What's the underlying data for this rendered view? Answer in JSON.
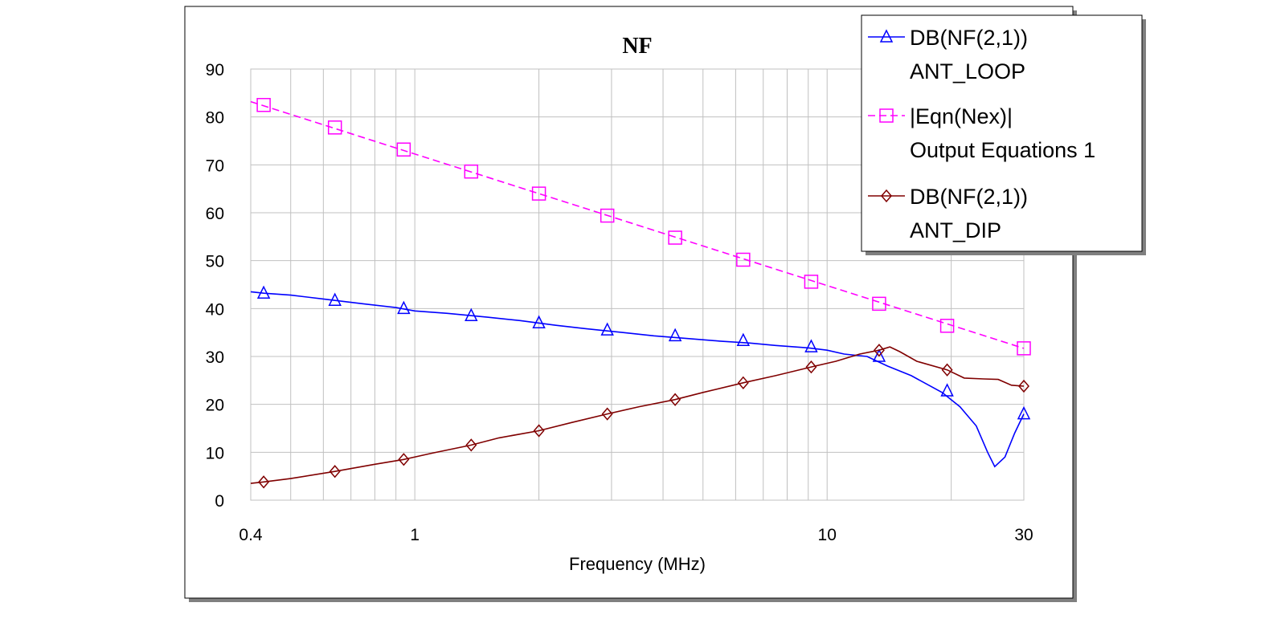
{
  "chart_data": {
    "type": "line",
    "title": "NF",
    "xlabel": "Frequency (MHz)",
    "ylabel": "",
    "x_scale": "log",
    "xlim": [
      0.4,
      30
    ],
    "ylim": [
      0,
      90
    ],
    "grid": true,
    "legend_position": "top-right",
    "x_tick_labels": [
      "0.4",
      "1",
      "10",
      "30"
    ],
    "x_ticks": [
      0.4,
      1,
      10,
      30
    ],
    "y_ticks": [
      0,
      10,
      20,
      30,
      40,
      50,
      60,
      70,
      80,
      90
    ],
    "y_tick_labels": [
      "0",
      "10",
      "20",
      "30",
      "40",
      "50",
      "60",
      "70",
      "80",
      "90"
    ],
    "series": [
      {
        "name": "DB(NF(2,1))",
        "name2": "ANT_LOOP",
        "color": "#0000ff",
        "dash": "solid",
        "marker": "triangle",
        "x": [
          0.4,
          0.43,
          0.5,
          0.6,
          0.75,
          0.9,
          1.0,
          1.2,
          1.5,
          1.8,
          2.2,
          2.6,
          3.2,
          3.8,
          4.5,
          5.5,
          6.5,
          7.5,
          9.0,
          10.0,
          11.0,
          12.5,
          14.0,
          16.0,
          19.0,
          21.0,
          23.0,
          24.5,
          25.5,
          27.0,
          28.5,
          30.0
        ],
        "y": [
          43.5,
          43.2,
          42.8,
          42.0,
          41.0,
          40.2,
          39.5,
          39.0,
          38.2,
          37.5,
          36.5,
          35.8,
          35.0,
          34.3,
          33.8,
          33.2,
          32.8,
          32.3,
          31.8,
          31.3,
          30.5,
          30.0,
          28.0,
          26.0,
          22.5,
          19.5,
          15.5,
          10.0,
          7.0,
          9.0,
          14.0,
          18.0
        ],
        "marker_x": [
          0.43,
          0.64,
          0.94,
          1.37,
          2.0,
          2.93,
          4.28,
          6.26,
          9.15,
          13.37,
          19.55,
          30.0
        ],
        "marker_y": [
          43.2,
          41.7,
          40.0,
          38.5,
          37.0,
          35.5,
          34.3,
          33.3,
          32.0,
          30.0,
          22.8,
          18.0
        ]
      },
      {
        "name": "|Eqn(Nex)|",
        "name2": "Output Equations 1",
        "color": "#ff00ff",
        "dash": "dashed",
        "marker": "square",
        "x": [
          0.4,
          30.0
        ],
        "y": [
          83.2,
          31.7
        ],
        "marker_x": [
          0.43,
          0.64,
          0.94,
          1.37,
          2.0,
          2.93,
          4.28,
          6.26,
          9.15,
          13.37,
          19.55,
          30.0
        ],
        "marker_y": [
          82.5,
          77.8,
          73.2,
          68.6,
          64.0,
          59.4,
          54.8,
          50.2,
          45.6,
          41.0,
          36.4,
          31.7
        ]
      },
      {
        "name": "DB(NF(2,1))",
        "name2": "ANT_DIP",
        "color": "#800000",
        "dash": "solid",
        "marker": "diamond",
        "x": [
          0.4,
          0.43,
          0.5,
          0.64,
          0.8,
          0.94,
          1.1,
          1.37,
          1.6,
          2.0,
          2.4,
          2.93,
          3.5,
          4.28,
          5.0,
          6.26,
          7.5,
          9.15,
          10.5,
          12.0,
          13.37,
          14.2,
          15.0,
          16.5,
          19.55,
          21.5,
          24.0,
          26.0,
          28.0,
          30.0
        ],
        "y": [
          3.5,
          3.8,
          4.5,
          6.0,
          7.5,
          8.5,
          9.8,
          11.5,
          13.0,
          14.5,
          16.2,
          18.0,
          19.5,
          21.0,
          22.5,
          24.5,
          26.0,
          27.8,
          29.0,
          30.5,
          31.3,
          32.0,
          31.0,
          29.0,
          27.2,
          25.5,
          25.3,
          25.2,
          24.0,
          23.8
        ],
        "marker_x": [
          0.43,
          0.64,
          0.94,
          1.37,
          2.0,
          2.93,
          4.28,
          6.26,
          9.15,
          13.37,
          19.55,
          30.0
        ],
        "marker_y": [
          3.8,
          6.0,
          8.5,
          11.5,
          14.5,
          18.0,
          21.0,
          24.5,
          27.8,
          31.3,
          27.2,
          23.8
        ]
      }
    ]
  }
}
